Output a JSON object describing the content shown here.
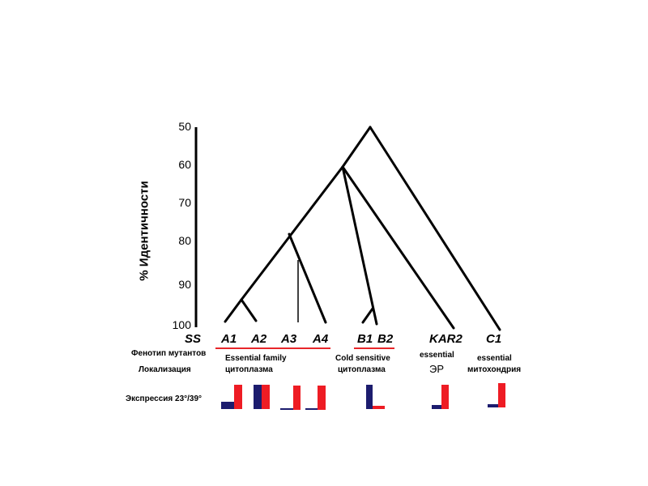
{
  "axis": {
    "label": "% Идентичности",
    "ticks": [
      "50",
      "60",
      "70",
      "80",
      "90",
      "100"
    ]
  },
  "leaves": {
    "ss": "SS",
    "a1": "A1",
    "a2": "A2",
    "a3": "A3",
    "a4": "A4",
    "b1": "B1",
    "b2": "B2",
    "kar2": "KAR2",
    "c1": "C1"
  },
  "rows": {
    "phenotype": "Фенотип мутантов",
    "localization": "Локализация",
    "expression": "Экспрессия 23°/39°"
  },
  "groups": {
    "a": {
      "phenotype": "Essential family",
      "localization": "цитоплазма"
    },
    "b": {
      "phenotype": "Cold sensitive",
      "localization": "цитоплазма"
    },
    "kar2": {
      "phenotype": "essential",
      "localization": "ЭР"
    },
    "c1": {
      "phenotype": "essential",
      "localization": "митохондрия"
    }
  },
  "expression_levels": {
    "A1": {
      "23": 0.3,
      "39": 1.0
    },
    "A2": {
      "23": 1.0,
      "39": 1.0
    },
    "A3": {
      "23": 0.03,
      "39": 1.0
    },
    "A4": {
      "23": 0.03,
      "39": 1.0
    },
    "B1B2": {
      "23": 1.0,
      "39": 0.12
    },
    "KAR2": {
      "23": 0.15,
      "39": 1.0
    },
    "C1": {
      "23": 0.15,
      "39": 1.0
    }
  },
  "colors": {
    "line": "#000000",
    "underline": "#e8262a",
    "bar_23": "#1c1c6e",
    "bar_39": "#ee1c24"
  }
}
